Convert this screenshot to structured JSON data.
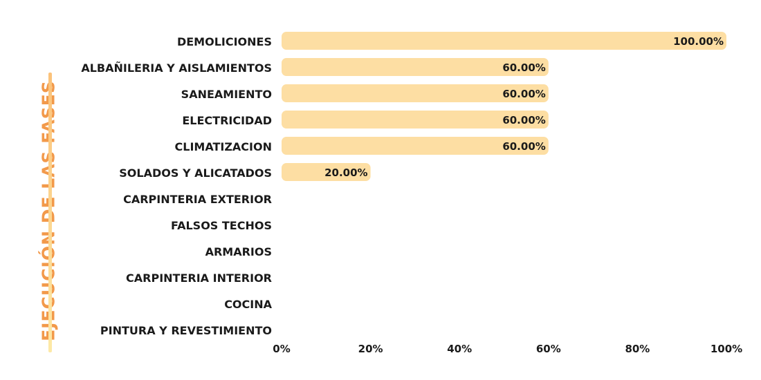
{
  "side_title": "EJECUCIÓN DE LAS FASES",
  "colors": {
    "bar": "#fddea3",
    "title": "#f2994a",
    "line_top": "#fbc27a",
    "line_bottom": "#fde9a6"
  },
  "chart_data": {
    "type": "bar",
    "orientation": "horizontal",
    "categories": [
      "DEMOLICIONES",
      "ALBAÑILERIA Y AISLAMIENTOS",
      "SANEAMIENTO",
      "ELECTRICIDAD",
      "CLIMATIZACION",
      "SOLADOS Y ALICATADOS",
      "CARPINTERIA EXTERIOR",
      "FALSOS TECHOS",
      "ARMARIOS",
      "CARPINTERIA INTERIOR",
      "COCINA",
      "PINTURA Y REVESTIMIENTO"
    ],
    "values": [
      100,
      60,
      60,
      60,
      60,
      20,
      0,
      0,
      0,
      0,
      0,
      0
    ],
    "data_labels": [
      "100.00%",
      "60.00%",
      "60.00%",
      "60.00%",
      "60.00%",
      "20.00%",
      "",
      "",
      "",
      "",
      "",
      ""
    ],
    "xlim": [
      0,
      100
    ],
    "x_ticks": [
      "0%",
      "20%",
      "40%",
      "60%",
      "80%",
      "100%"
    ],
    "grid": false,
    "legend": "none"
  }
}
